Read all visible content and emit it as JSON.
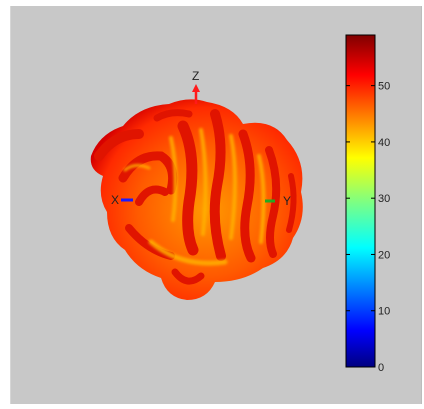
{
  "chart_data": {
    "type": "surface",
    "title": "",
    "description_visible": "3D radiation pattern surface (balloon plot) colored by magnitude",
    "axes": [
      {
        "name": "X",
        "color": "#1a1aff"
      },
      {
        "name": "Y",
        "color": "#22aa22"
      },
      {
        "name": "Z",
        "color": "#ff1a1a"
      }
    ],
    "colorbar": {
      "colormap": "jet",
      "range": [
        0,
        59
      ],
      "ticks": [
        0,
        10,
        20,
        30,
        40,
        50
      ]
    },
    "surface_value_range": [
      40,
      59
    ]
  }
}
